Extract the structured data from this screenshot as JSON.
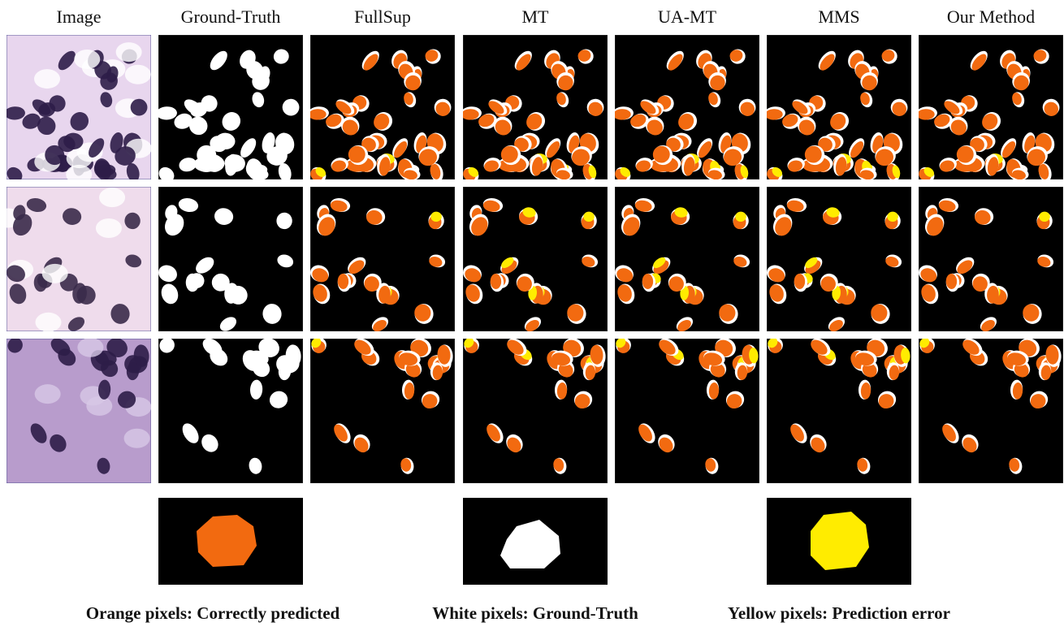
{
  "columns": [
    "Image",
    "Ground-Truth",
    "FullSup",
    "MT",
    "UA-MT",
    "MMS",
    "Our Method"
  ],
  "legend": [
    "Orange pixels: Correctly predicted",
    "White pixels: Ground-Truth",
    "Yellow pixels: Prediction error"
  ]
}
